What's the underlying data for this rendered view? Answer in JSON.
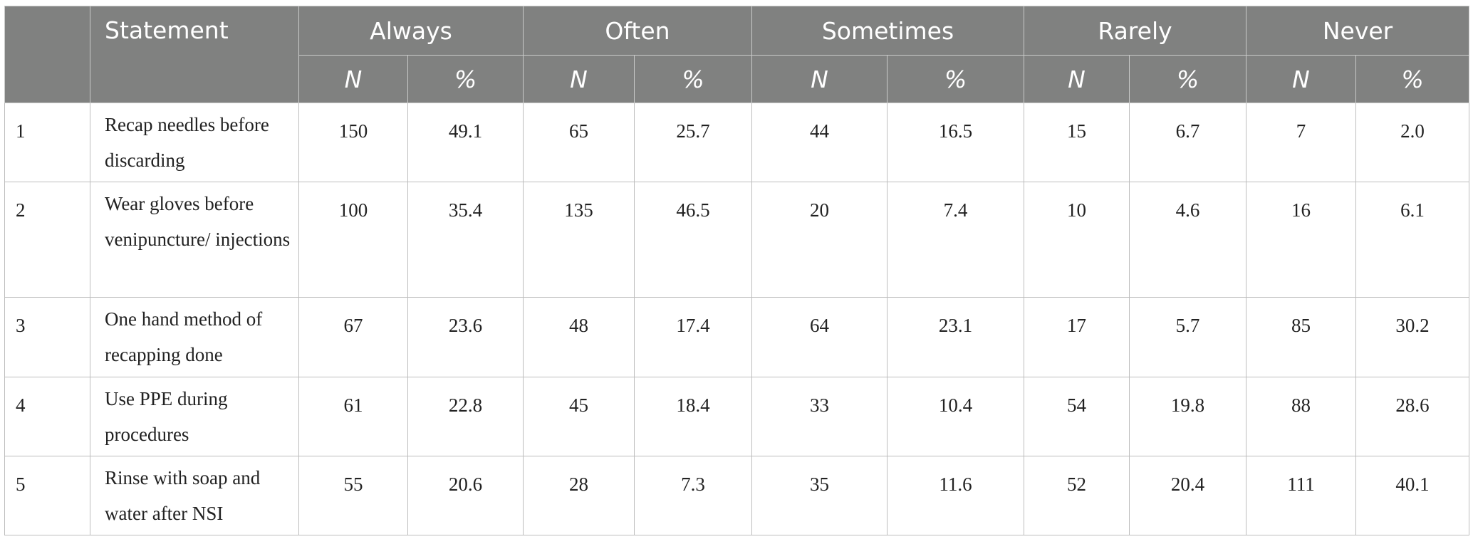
{
  "table": {
    "header": {
      "blank": "",
      "statement": "Statement",
      "groups": [
        "Always",
        "Often",
        "Sometimes",
        "Rarely",
        "Never"
      ],
      "sub_n": "N",
      "sub_pct": "%"
    },
    "rows": [
      {
        "id": "1",
        "statement": "Recap needles before discarding",
        "values": [
          "150",
          "49.1",
          "65",
          "25.7",
          "44",
          "16.5",
          "15",
          "6.7",
          "7",
          "2.0"
        ]
      },
      {
        "id": "2",
        "statement": "Wear gloves before venipuncture/ injections",
        "values": [
          "100",
          "35.4",
          "135",
          "46.5",
          "20",
          "7.4",
          "10",
          "4.6",
          "16",
          "6.1"
        ]
      },
      {
        "id": "3",
        "statement": "One hand method of recapping done",
        "values": [
          "67",
          "23.6",
          "48",
          "17.4",
          "64",
          "23.1",
          "17",
          "5.7",
          "85",
          "30.2"
        ]
      },
      {
        "id": "4",
        "statement": "Use PPE during procedures",
        "values": [
          "61",
          "22.8",
          "45",
          "18.4",
          "33",
          "10.4",
          "54",
          "19.8",
          "88",
          "28.6"
        ]
      },
      {
        "id": "5",
        "statement": "Rinse with soap and water after NSI",
        "values": [
          "55",
          "20.6",
          "28",
          "7.3",
          "35",
          "11.6",
          "52",
          "20.4",
          "111",
          "40.1"
        ]
      }
    ]
  },
  "colors": {
    "header_bg": "#808180",
    "header_text": "#ffffff",
    "grid": "#bdbdbd"
  }
}
